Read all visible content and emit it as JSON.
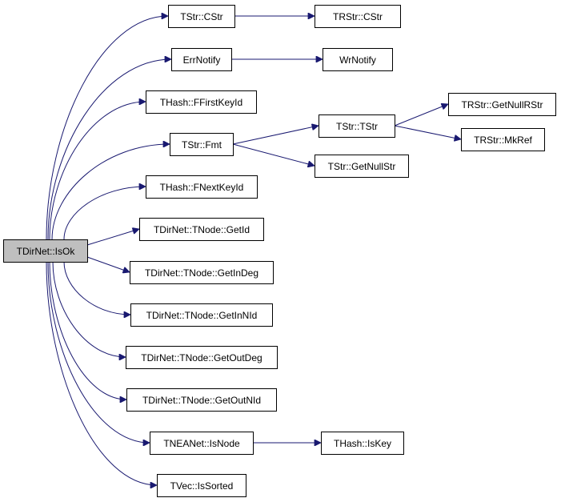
{
  "graph": {
    "root": "TDirNet::IsOk",
    "nodes": {
      "root": "TDirNet::IsOk",
      "tstr_cstr": "TStr::CStr",
      "errnotify": "ErrNotify",
      "ffirstkeyid": "THash::FFirstKeyId",
      "tstr_fmt": "TStr::Fmt",
      "fnextkeyid": "THash::FNextKeyId",
      "getid": "TDirNet::TNode::GetId",
      "getindeg": "TDirNet::TNode::GetInDeg",
      "getinnid": "TDirNet::TNode::GetInNId",
      "getoutdeg": "TDirNet::TNode::GetOutDeg",
      "getoutnid": "TDirNet::TNode::GetOutNId",
      "isnode": "TNEANet::IsNode",
      "issorted": "TVec::IsSorted",
      "trstr_cstr": "TRStr::CStr",
      "wrnotify": "WrNotify",
      "tstr_tstr": "TStr::TStr",
      "getnullstr": "TStr::GetNullStr",
      "getnullrstr": "TRStr::GetNullRStr",
      "mkref": "TRStr::MkRef",
      "iskey": "THash::IsKey"
    },
    "edges": [
      [
        "root",
        "tstr_cstr"
      ],
      [
        "root",
        "errnotify"
      ],
      [
        "root",
        "ffirstkeyid"
      ],
      [
        "root",
        "tstr_fmt"
      ],
      [
        "root",
        "fnextkeyid"
      ],
      [
        "root",
        "getid"
      ],
      [
        "root",
        "getindeg"
      ],
      [
        "root",
        "getinnid"
      ],
      [
        "root",
        "getoutdeg"
      ],
      [
        "root",
        "getoutnid"
      ],
      [
        "root",
        "isnode"
      ],
      [
        "root",
        "issorted"
      ],
      [
        "tstr_cstr",
        "trstr_cstr"
      ],
      [
        "errnotify",
        "wrnotify"
      ],
      [
        "tstr_fmt",
        "tstr_tstr"
      ],
      [
        "tstr_fmt",
        "getnullstr"
      ],
      [
        "tstr_tstr",
        "getnullrstr"
      ],
      [
        "tstr_tstr",
        "mkref"
      ],
      [
        "isnode",
        "iskey"
      ]
    ],
    "colors": {
      "edge": "#191970",
      "root_fill": "#bfbfbf",
      "node_fill": "#ffffff",
      "border": "#000000"
    }
  }
}
